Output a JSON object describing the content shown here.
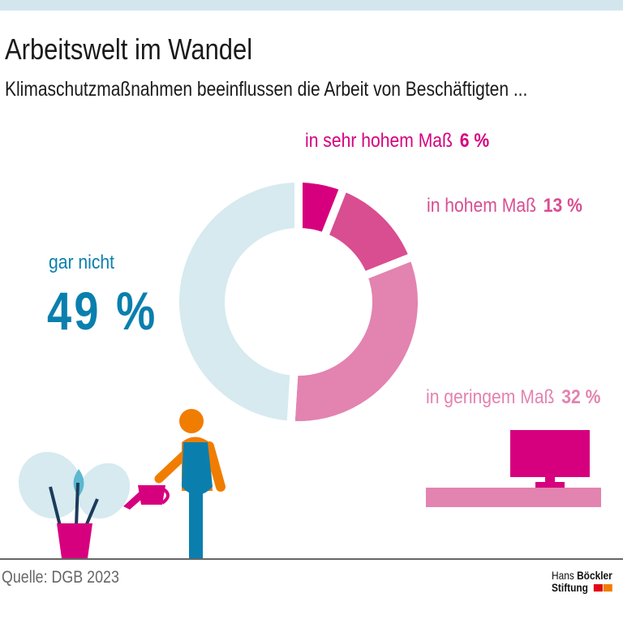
{
  "header": {
    "title": "Arbeitswelt im Wandel",
    "subtitle": "Klimaschutzmaßnahmen beeinflussen die Arbeit von Beschäftigten ..."
  },
  "chart_data": {
    "type": "pie",
    "donut": true,
    "title": "Arbeitswelt im Wandel",
    "subtitle": "Klimaschutzmaßnahmen beeinflussen die Arbeit von Beschäftigten ...",
    "slices": [
      {
        "label": "in sehr hohem Maß",
        "value": 6,
        "value_label": "6 %",
        "color": "#d6007e"
      },
      {
        "label": "in hohem Maß",
        "value": 13,
        "value_label": "13 %",
        "color": "#d94d91"
      },
      {
        "label": "in geringem Maß",
        "value": 32,
        "value_label": "32 %",
        "color": "#e383b0"
      },
      {
        "label": "gar nicht",
        "value": 49,
        "value_label": "49 %",
        "color": "#d6eaf0"
      }
    ]
  },
  "footer": {
    "source": "Quelle: DGB 2023",
    "logo_line1_a": "Hans",
    "logo_line1_b": "Böckler",
    "logo_line2": "Stiftung",
    "logo_colors": [
      "#e30613",
      "#f07d00"
    ]
  }
}
